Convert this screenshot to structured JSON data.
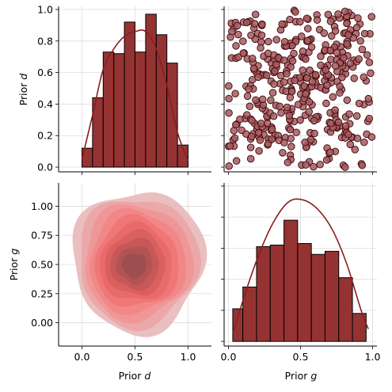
{
  "chart_data": [
    {
      "type": "bar",
      "panel": "top-left",
      "title": "",
      "xlabel": "",
      "ylabel": "Prior d",
      "xlim": [
        -0.22,
        1.22
      ],
      "ylim": [
        -0.03,
        1.02
      ],
      "ytick_labels": [
        "0.0",
        "0.2",
        "0.4",
        "0.6",
        "0.8",
        "1.0"
      ],
      "grid": true,
      "bin_edges": [
        0.0,
        0.1,
        0.2,
        0.3,
        0.4,
        0.5,
        0.6,
        0.7,
        0.8,
        0.9,
        1.0
      ],
      "bar_heights": [
        0.12,
        0.44,
        0.73,
        0.72,
        0.92,
        0.73,
        0.97,
        0.84,
        0.66,
        0.14
      ],
      "kde_x": [
        0.0,
        0.1,
        0.2,
        0.3,
        0.4,
        0.5,
        0.6,
        0.7,
        0.8,
        0.9,
        1.0
      ],
      "kde_y": [
        0.05,
        0.33,
        0.62,
        0.75,
        0.83,
        0.86,
        0.86,
        0.75,
        0.52,
        0.22,
        0.04
      ],
      "colors": {
        "bar": "#953333",
        "edge": "#000000",
        "kde": "#8b1e1e"
      }
    },
    {
      "type": "scatter",
      "panel": "top-right",
      "title": "",
      "xlabel": "",
      "ylabel": "",
      "xlim": [
        -0.03,
        1.03
      ],
      "ylim": [
        -0.03,
        1.02
      ],
      "n_points": 400,
      "x_range": [
        0.0,
        1.0
      ],
      "y_range": [
        0.0,
        1.0
      ],
      "grid": true,
      "colors": {
        "fill": "#a65a60",
        "edge": "#3a0505"
      }
    },
    {
      "type": "heatmap",
      "panel": "bottom-left",
      "title": "",
      "xlabel": "Prior d",
      "ylabel": "Prior g",
      "xlim": [
        -0.22,
        1.22
      ],
      "ylim": [
        -0.2,
        1.2
      ],
      "xtick_labels": [
        "0.0",
        "0.5",
        "1.0"
      ],
      "ytick_labels": [
        "0.00",
        "0.25",
        "0.50",
        "0.75",
        "1.00"
      ],
      "grid": true,
      "kde_center": [
        0.53,
        0.53
      ],
      "levels": 10,
      "colors": [
        "#e8b8b8",
        "#eca5a5",
        "#ef9595",
        "#f28585",
        "#f07676",
        "#e86868",
        "#d85e5e",
        "#c55858",
        "#b05353",
        "#9a4e4e"
      ]
    },
    {
      "type": "bar",
      "panel": "bottom-right",
      "title": "",
      "xlabel": "Prior g",
      "ylabel": "",
      "xlim": [
        -0.03,
        1.03
      ],
      "ylim": [
        -0.03,
        1.02
      ],
      "xtick_labels": [
        "0.0",
        "0.5",
        "1.0"
      ],
      "grid": true,
      "bin_edges": [
        0.03,
        0.1,
        0.195,
        0.29,
        0.385,
        0.48,
        0.575,
        0.67,
        0.765,
        0.86,
        0.955
      ],
      "bar_heights": [
        0.21,
        0.35,
        0.61,
        0.62,
        0.78,
        0.63,
        0.56,
        0.58,
        0.41,
        0.18
      ],
      "kde_x": [
        0.03,
        0.12,
        0.22,
        0.32,
        0.42,
        0.52,
        0.62,
        0.72,
        0.82,
        0.92,
        0.97
      ],
      "kde_y": [
        0.05,
        0.32,
        0.58,
        0.78,
        0.9,
        0.91,
        0.85,
        0.72,
        0.5,
        0.2,
        0.08
      ],
      "colors": {
        "bar": "#953333",
        "edge": "#000000",
        "kde": "#8b1e1e"
      }
    }
  ]
}
